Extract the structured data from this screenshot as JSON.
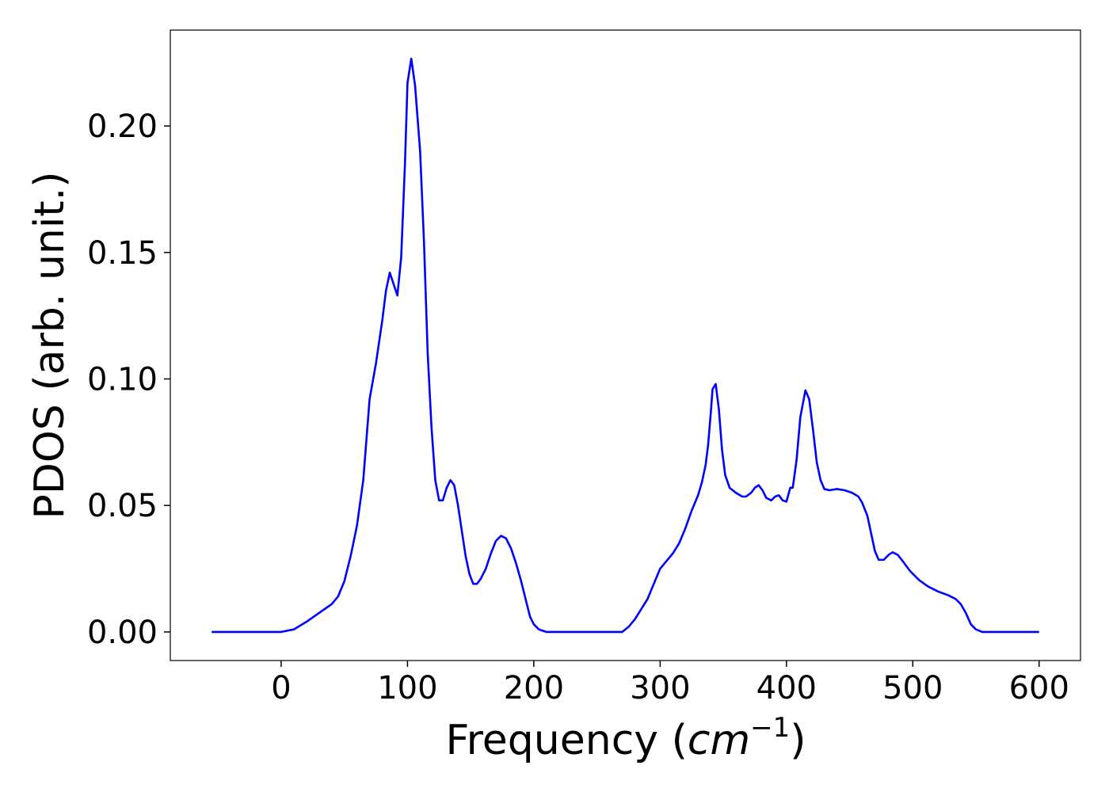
{
  "chart_data": {
    "type": "line",
    "x_label": {
      "text": "Frequency (",
      "unit": "cm",
      "exponent": "−1",
      "close": ")"
    },
    "y_label": "PDOS (arb. unit.)",
    "color": "#0000ff",
    "x": [
      -55,
      0,
      10,
      20,
      30,
      40,
      45,
      50,
      55,
      60,
      65,
      70,
      75,
      80,
      83,
      86,
      90,
      92,
      95,
      98,
      100,
      103,
      106,
      110,
      113,
      116,
      119,
      122,
      125,
      128,
      131,
      134,
      137,
      140,
      143,
      146,
      149,
      152,
      155,
      158,
      162,
      166,
      170,
      174,
      178,
      182,
      186,
      190,
      194,
      197,
      200,
      204,
      210,
      270,
      275,
      280,
      285,
      290,
      300,
      305,
      310,
      315,
      320,
      325,
      330,
      333,
      336,
      338,
      340,
      341.5,
      344,
      346.5,
      349,
      351.5,
      355,
      360,
      365,
      368,
      372,
      375,
      378,
      381,
      384,
      388,
      391,
      394,
      397,
      400,
      403,
      405,
      408,
      411,
      415,
      418,
      421,
      424,
      427,
      430,
      434,
      440,
      446,
      452,
      457,
      460,
      464,
      467,
      470,
      473,
      477,
      481,
      484,
      488,
      492,
      498,
      505,
      512,
      520,
      528,
      534,
      538,
      542,
      546,
      550,
      555,
      600
    ],
    "values": [
      0,
      0,
      0.001,
      0.004,
      0.0075,
      0.011,
      0.014,
      0.02,
      0.03,
      0.042,
      0.06,
      0.092,
      0.106,
      0.123,
      0.135,
      0.142,
      0.136,
      0.133,
      0.148,
      0.185,
      0.217,
      0.2266,
      0.216,
      0.19,
      0.155,
      0.11,
      0.081,
      0.06,
      0.052,
      0.052,
      0.057,
      0.06,
      0.058,
      0.05,
      0.04,
      0.03,
      0.023,
      0.019,
      0.019,
      0.021,
      0.025,
      0.031,
      0.036,
      0.038,
      0.037,
      0.033,
      0.027,
      0.02,
      0.012,
      0.006,
      0.003,
      0.001,
      0,
      0,
      0.002,
      0.005,
      0.009,
      0.013,
      0.025,
      0.028,
      0.031,
      0.035,
      0.041,
      0.048,
      0.054,
      0.059,
      0.066,
      0.074,
      0.086,
      0.096,
      0.098,
      0.088,
      0.072,
      0.062,
      0.057,
      0.055,
      0.0535,
      0.0535,
      0.055,
      0.057,
      0.058,
      0.056,
      0.053,
      0.052,
      0.0535,
      0.054,
      0.052,
      0.0515,
      0.057,
      0.057,
      0.068,
      0.085,
      0.0955,
      0.092,
      0.08,
      0.067,
      0.06,
      0.0565,
      0.056,
      0.0565,
      0.056,
      0.055,
      0.0535,
      0.051,
      0.046,
      0.039,
      0.032,
      0.0285,
      0.0285,
      0.0305,
      0.0315,
      0.0305,
      0.028,
      0.024,
      0.0205,
      0.018,
      0.016,
      0.0145,
      0.013,
      0.011,
      0.0075,
      0.003,
      0.001,
      0,
      0
    ],
    "xlim": [
      -87.75,
      632.75
    ],
    "ylim": [
      -0.0113,
      0.2379
    ],
    "xticks": [
      0,
      100,
      200,
      300,
      400,
      500,
      600
    ],
    "yticks": [
      {
        "value": 0,
        "label": "0.00"
      },
      {
        "value": 0.05,
        "label": "0.05"
      },
      {
        "value": 0.1,
        "label": "0.10"
      },
      {
        "value": 0.15,
        "label": "0.15"
      },
      {
        "value": 0.2,
        "label": "0.20"
      }
    ],
    "grid": false
  }
}
